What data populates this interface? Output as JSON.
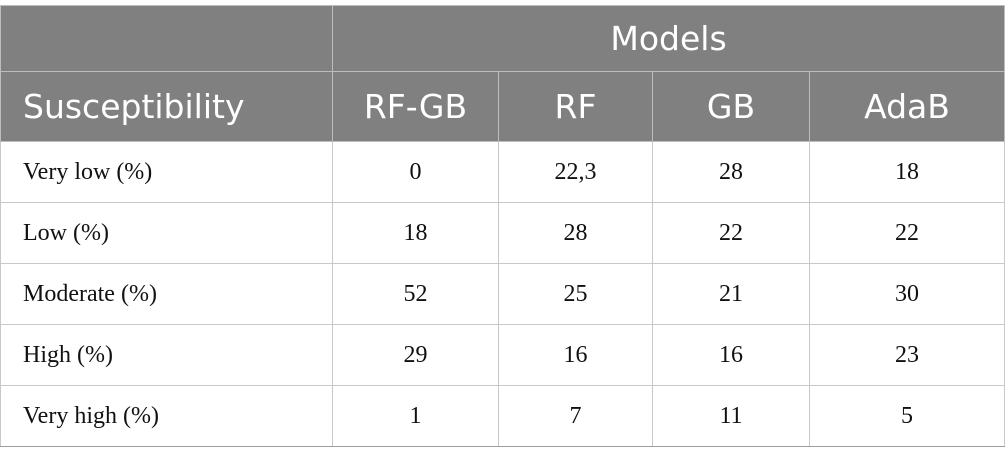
{
  "table": {
    "group_header": "Models",
    "row_header": "Susceptibility",
    "columns": [
      "RF-GB",
      "RF",
      "GB",
      "AdaB"
    ],
    "rows": [
      {
        "label": "Very low (%)",
        "values": [
          "0",
          "22,3",
          "28",
          "18"
        ]
      },
      {
        "label": "Low (%)",
        "values": [
          "18",
          "28",
          "22",
          "22"
        ]
      },
      {
        "label": "Moderate (%)",
        "values": [
          "52",
          "25",
          "21",
          "30"
        ]
      },
      {
        "label": "High (%)",
        "values": [
          "29",
          "16",
          "16",
          "23"
        ]
      },
      {
        "label": "Very high (%)",
        "values": [
          "1",
          "7",
          "11",
          "5"
        ]
      }
    ]
  },
  "colors": {
    "header_bg": "#808080",
    "header_text": "#ffffff",
    "grid": "#c8c8c8"
  }
}
